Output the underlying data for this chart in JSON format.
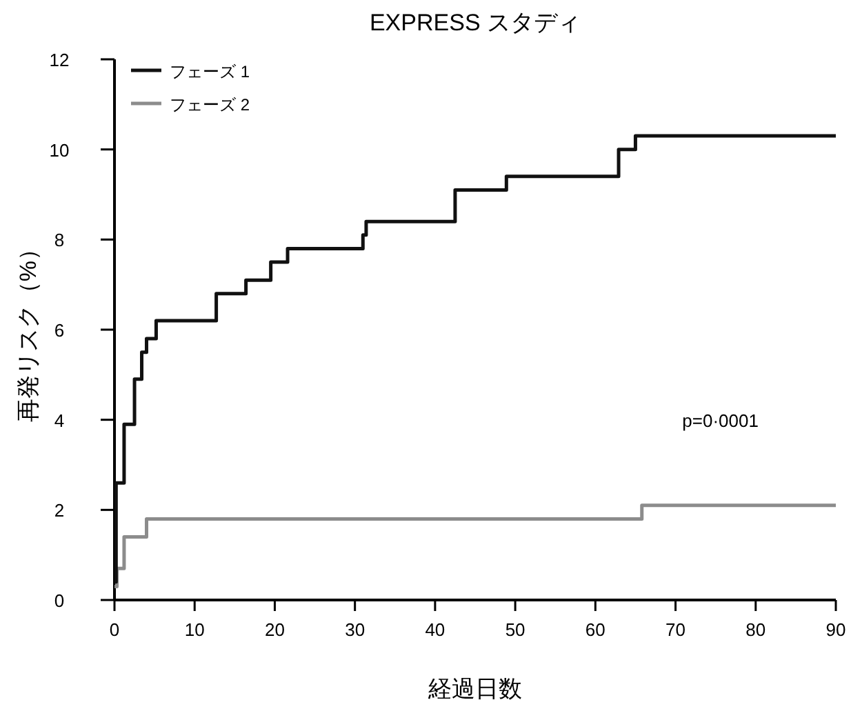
{
  "chart_data": {
    "type": "step",
    "title": "EXPRESS スタディ",
    "xlabel": "経過日数",
    "ylabel": "再発リスク（%）",
    "xlim": [
      0,
      90
    ],
    "ylim": [
      0,
      12
    ],
    "xticks": [
      0,
      10,
      20,
      30,
      40,
      50,
      60,
      70,
      80,
      90
    ],
    "yticks": [
      0,
      2,
      4,
      6,
      8,
      10,
      12
    ],
    "legend": "top left",
    "annotations": [
      "p=0·0001"
    ],
    "series": [
      {
        "name": "フェーズ 1",
        "color": "#111111",
        "x": [
          0,
          0.2,
          1.2,
          2.5,
          3.4,
          4.0,
          5.2,
          12.7,
          16.4,
          19.5,
          21.6,
          31.0,
          31.4,
          42.5,
          48.9,
          62.9,
          65.0,
          90
        ],
        "values": [
          0.4,
          2.6,
          3.9,
          4.9,
          5.5,
          5.8,
          6.2,
          6.8,
          7.1,
          7.5,
          7.8,
          8.1,
          8.4,
          9.1,
          9.4,
          10.0,
          10.3,
          10.3
        ]
      },
      {
        "name": "フェーズ 2",
        "color": "#8c8c8c",
        "x": [
          0,
          0.3,
          1.2,
          4.0,
          65.8,
          90
        ],
        "values": [
          0.3,
          0.7,
          1.4,
          1.8,
          2.1,
          2.1
        ]
      }
    ]
  }
}
